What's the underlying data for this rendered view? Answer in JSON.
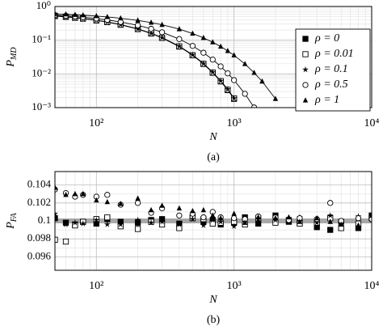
{
  "chart_data": [
    {
      "type": "line",
      "caption": "(a)",
      "xlabel": "N",
      "ylabel": {
        "text": "P",
        "sub": "MD"
      },
      "xscale": "log",
      "yscale": "log",
      "grid": true,
      "legend": "right",
      "xlim": [
        50,
        10000
      ],
      "ylim": [
        0.001,
        1
      ],
      "xticks": [
        {
          "value": 100,
          "label": "10²"
        },
        {
          "value": 1000,
          "label": "10³"
        },
        {
          "value": 10000,
          "label": "10⁴"
        }
      ],
      "yticks": [
        {
          "value": 0.001,
          "label": "10⁻³"
        },
        {
          "value": 0.01,
          "label": "10⁻²"
        },
        {
          "value": 0.1,
          "label": "10⁻¹"
        },
        {
          "value": 1,
          "label": "10⁰"
        }
      ],
      "x": [
        50,
        60,
        70,
        80,
        100,
        120,
        150,
        200,
        250,
        300,
        400,
        500,
        600,
        700,
        800,
        900,
        1000,
        1200,
        1400,
        1600,
        2000
      ],
      "series": [
        {
          "name": "ρ = 0",
          "color": "#000000",
          "marker": "square-filled",
          "values": [
            0.52,
            0.49,
            0.46,
            0.435,
            0.386,
            0.343,
            0.287,
            0.213,
            0.158,
            0.117,
            0.0647,
            0.0357,
            0.0197,
            0.0108,
            0.00599,
            0.0033,
            0.00182,
            null,
            null,
            null,
            null
          ]
        },
        {
          "name": "ρ = 0.01",
          "color": "#000000",
          "marker": "square-open",
          "values": [
            0.53,
            0.5,
            0.465,
            0.44,
            0.39,
            0.345,
            0.29,
            0.215,
            0.16,
            0.118,
            0.066,
            0.036,
            0.02,
            0.011,
            0.0061,
            0.0034,
            0.00188,
            null,
            null,
            null,
            null
          ]
        },
        {
          "name": "ρ = 0.1",
          "color": "#000000",
          "marker": "star",
          "values": [
            0.53,
            0.5,
            0.47,
            0.44,
            0.392,
            0.348,
            0.292,
            0.217,
            0.161,
            0.12,
            0.0665,
            0.0368,
            0.0203,
            0.0112,
            0.0062,
            0.0035,
            0.0019,
            null,
            null,
            null,
            null
          ]
        },
        {
          "name": "ρ = 0.5",
          "color": "#000000",
          "marker": "circle-open",
          "values": [
            0.554,
            0.529,
            0.505,
            0.482,
            0.439,
            0.399,
            0.347,
            0.275,
            0.218,
            0.172,
            0.108,
            0.0677,
            0.0424,
            0.0266,
            0.0167,
            0.0104,
            0.00654,
            0.00257,
            0.00101,
            null,
            null
          ]
        },
        {
          "name": "ρ = 1",
          "color": "#000000",
          "marker": "triangle-filled",
          "values": [
            0.603,
            0.585,
            0.568,
            0.552,
            0.52,
            0.49,
            0.448,
            0.386,
            0.333,
            0.287,
            0.213,
            0.158,
            0.117,
            0.0872,
            0.0647,
            0.048,
            0.0357,
            0.0197,
            0.0108,
            0.00599,
            0.00182
          ]
        }
      ]
    },
    {
      "type": "scatter",
      "caption": "(b)",
      "xlabel": "N",
      "ylabel": {
        "text": "P",
        "sub": "FA"
      },
      "xscale": "log",
      "yscale": "linear",
      "grid": true,
      "hline": 0.1,
      "xlim": [
        50,
        10000
      ],
      "ylim": [
        0.0945,
        0.1055
      ],
      "xticks": [
        {
          "value": 100,
          "label": "10²"
        },
        {
          "value": 1000,
          "label": "10³"
        },
        {
          "value": 10000,
          "label": "10⁴"
        }
      ],
      "yticks": [
        0.096,
        0.098,
        0.1,
        0.102,
        0.104
      ],
      "x": [
        50,
        60,
        70,
        80,
        100,
        120,
        150,
        200,
        250,
        300,
        400,
        500,
        600,
        700,
        800,
        1000,
        1200,
        1500,
        2000,
        2500,
        3000,
        4000,
        5000,
        6000,
        8000,
        10000
      ],
      "series": [
        {
          "name": "ρ = 0",
          "color": "#000000",
          "marker": "square-filled",
          "values": [
            0.1003,
            0.0998,
            0.0996,
            0.0999,
            0.0997,
            0.1002,
            0.0999,
            0.0998,
            0.1001,
            0.1002,
            0.0997,
            0.1004,
            0.0999,
            0.1001,
            0.0996,
            0.0998,
            0.1004,
            0.0997,
            0.1006,
            0.0999,
            0.0998,
            0.0993,
            0.099,
            0.0999,
            0.0992,
            0.1006
          ]
        },
        {
          "name": "ρ = 0.01",
          "color": "#000000",
          "marker": "square-open",
          "values": [
            0.0979,
            0.0977,
            0.0995,
            0.0999,
            0.1002,
            0.1004,
            0.0994,
            0.0991,
            0.0999,
            0.0996,
            0.0992,
            0.1003,
            0.1002,
            0.0997,
            0.0998,
            0.0999,
            0.0996,
            0.1003,
            0.0998,
            0.1001,
            0.0997,
            0.0998,
            0.1003,
            0.0992,
            0.0997,
            0.1003
          ]
        },
        {
          "name": "ρ = 0.1",
          "color": "#000000",
          "marker": "star",
          "values": [
            0.1008,
            0.0996,
            0.0998,
            0.0997,
            0.1001,
            0.0996,
            0.0996,
            0.1001,
            0.0998,
            0.0999,
            0.0996,
            0.1002,
            0.0995,
            0.1001,
            0.0999,
            0.0994,
            0.0999,
            0.1002,
            0.1001,
            0.0999,
            0.1004,
            0.0998,
            0.1006,
            0.0999,
            0.1005,
            0.1001
          ]
        },
        {
          "name": "ρ = 0.5",
          "color": "#000000",
          "marker": "circle-open",
          "values": [
            0.1035,
            0.1031,
            0.1027,
            0.1029,
            0.1027,
            0.1029,
            0.1018,
            0.102,
            0.1009,
            0.1014,
            0.1006,
            0.1008,
            0.1004,
            0.101,
            0.1004,
            0.1003,
            0.1002,
            0.1005,
            0.1004,
            0.1001,
            0.1003,
            0.1002,
            0.102,
            0.1,
            0.1003,
            0.1002
          ]
        },
        {
          "name": "ρ = 1",
          "color": "#000000",
          "marker": "triangle-filled",
          "values": [
            0.1037,
            0.1029,
            0.103,
            0.103,
            0.1023,
            0.1021,
            0.1019,
            0.1025,
            0.1012,
            0.1017,
            0.1014,
            0.1011,
            0.1012,
            0.1006,
            0.1003,
            0.1008,
            0.0998,
            0.1004,
            0.1003,
            0.1004,
            0.0999,
            0.1003,
            0.0999,
            0.0996,
            0.0995,
            0.1006
          ]
        }
      ]
    }
  ]
}
